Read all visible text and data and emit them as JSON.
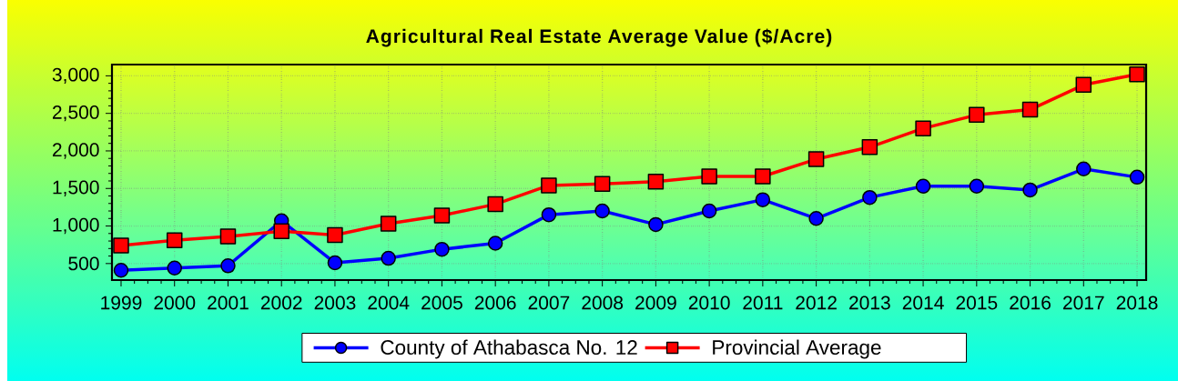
{
  "chart_data": {
    "type": "line",
    "title": "Agricultural Real Estate Average Value ($/Acre)",
    "categories": [
      "1999",
      "2000",
      "2001",
      "2002",
      "2003",
      "2004",
      "2005",
      "2006",
      "2007",
      "2008",
      "2009",
      "2010",
      "2011",
      "2012",
      "2013",
      "2014",
      "2015",
      "2016",
      "2017",
      "2018"
    ],
    "series": [
      {
        "name": "County of Athabasca No. 12",
        "color": "#0000ff",
        "marker": "circle",
        "values": [
          410,
          440,
          470,
          1070,
          510,
          570,
          690,
          770,
          1150,
          1200,
          1020,
          1200,
          1350,
          1100,
          1380,
          1530,
          1530,
          1480,
          1760,
          1650
        ]
      },
      {
        "name": "Provincial Average",
        "color": "#ff0000",
        "marker": "square",
        "values": [
          740,
          810,
          860,
          930,
          880,
          1030,
          1140,
          1290,
          1540,
          1560,
          1590,
          1660,
          1660,
          1890,
          2050,
          2300,
          2480,
          2550,
          2880,
          3020
        ]
      }
    ],
    "ylim": [
      280,
      3150
    ],
    "yticks": [
      500,
      {
        "value": 1000,
        "label": "1,000"
      },
      {
        "value": 1500,
        "label": "1,500"
      },
      {
        "value": 2000,
        "label": "2,000"
      },
      {
        "value": 2500,
        "label": "2,500"
      },
      {
        "value": 3000,
        "label": "3,000"
      }
    ],
    "grid": true,
    "legend": "bottom",
    "line_style": "solid"
  }
}
